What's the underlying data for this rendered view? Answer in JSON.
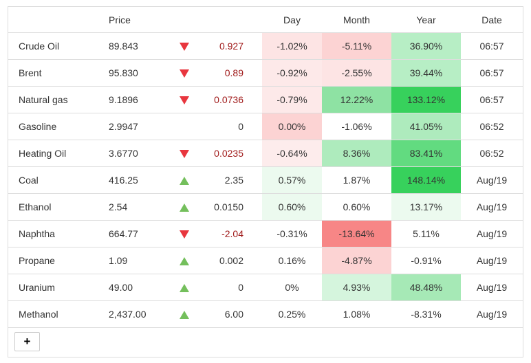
{
  "header": {
    "name": "",
    "price": "Price",
    "arrow": "",
    "change": "",
    "day": "Day",
    "month": "Month",
    "year": "Year",
    "date": "Date"
  },
  "rows": [
    {
      "name": "Crude Oil",
      "price": "89.843",
      "dir": "down",
      "change": "0.927",
      "day": "-1.02%",
      "month": "-5.11%",
      "year": "36.90%",
      "date": "06:57",
      "colors": {
        "day": "#fde4e4",
        "month": "#fcd3d3",
        "year": "#b7eec5"
      }
    },
    {
      "name": "Brent",
      "price": "95.830",
      "dir": "down",
      "change": "0.89",
      "day": "-0.92%",
      "month": "-2.55%",
      "year": "39.44%",
      "date": "06:57",
      "colors": {
        "day": "#fde9e9",
        "month": "#fde4e4",
        "year": "#b7eec5"
      }
    },
    {
      "name": "Natural gas",
      "price": "9.1896",
      "dir": "down",
      "change": "0.0736",
      "day": "-0.79%",
      "month": "12.22%",
      "year": "133.12%",
      "date": "06:57",
      "colors": {
        "day": "#fde9e9",
        "month": "#8ee2a3",
        "year": "#37d15c"
      }
    },
    {
      "name": "Gasoline",
      "price": "2.9947",
      "dir": "none",
      "change": "0",
      "day": "0.00%",
      "month": "-1.06%",
      "year": "41.05%",
      "date": "06:52",
      "colors": {
        "day": "#fcd3d3",
        "month": "#ffffff",
        "year": "#aeebbd"
      }
    },
    {
      "name": "Heating Oil",
      "price": "3.6770",
      "dir": "down",
      "change": "0.0235",
      "day": "-0.64%",
      "month": "8.36%",
      "year": "83.41%",
      "date": "06:52",
      "colors": {
        "day": "#fdecec",
        "month": "#aeebbd",
        "year": "#62db80"
      }
    },
    {
      "name": "Coal",
      "price": "416.25",
      "dir": "up",
      "change": "2.35",
      "day": "0.57%",
      "month": "1.87%",
      "year": "148.14%",
      "date": "Aug/19",
      "colors": {
        "day": "#ecfaef",
        "month": "#ffffff",
        "year": "#37d15c"
      }
    },
    {
      "name": "Ethanol",
      "price": "2.54",
      "dir": "up",
      "change": "0.0150",
      "day": "0.60%",
      "month": "0.60%",
      "year": "13.17%",
      "date": "Aug/19",
      "colors": {
        "day": "#ecfaef",
        "month": "#ffffff",
        "year": "#ecfaef"
      }
    },
    {
      "name": "Naphtha",
      "price": "664.77",
      "dir": "down",
      "change": "-2.04",
      "day": "-0.31%",
      "month": "-13.64%",
      "year": "5.11%",
      "date": "Aug/19",
      "colors": {
        "day": "#ffffff",
        "month": "#f78686",
        "year": "#ffffff"
      }
    },
    {
      "name": "Propane",
      "price": "1.09",
      "dir": "up",
      "change": "0.002",
      "day": "0.16%",
      "month": "-4.87%",
      "year": "-0.91%",
      "date": "Aug/19",
      "colors": {
        "day": "#ffffff",
        "month": "#fcd3d3",
        "year": "#ffffff"
      }
    },
    {
      "name": "Uranium",
      "price": "49.00",
      "dir": "up",
      "change": "0",
      "day": "0%",
      "month": "4.93%",
      "year": "48.48%",
      "date": "Aug/19",
      "colors": {
        "day": "#ffffff",
        "month": "#d5f5dd",
        "year": "#a6e9b6"
      }
    },
    {
      "name": "Methanol",
      "price": "2,437.00",
      "dir": "up",
      "change": "6.00",
      "day": "0.25%",
      "month": "1.08%",
      "year": "-8.31%",
      "date": "Aug/19",
      "colors": {
        "day": "#ffffff",
        "month": "#ffffff",
        "year": "#ffffff"
      }
    }
  ],
  "add_button": {
    "label": "+"
  }
}
